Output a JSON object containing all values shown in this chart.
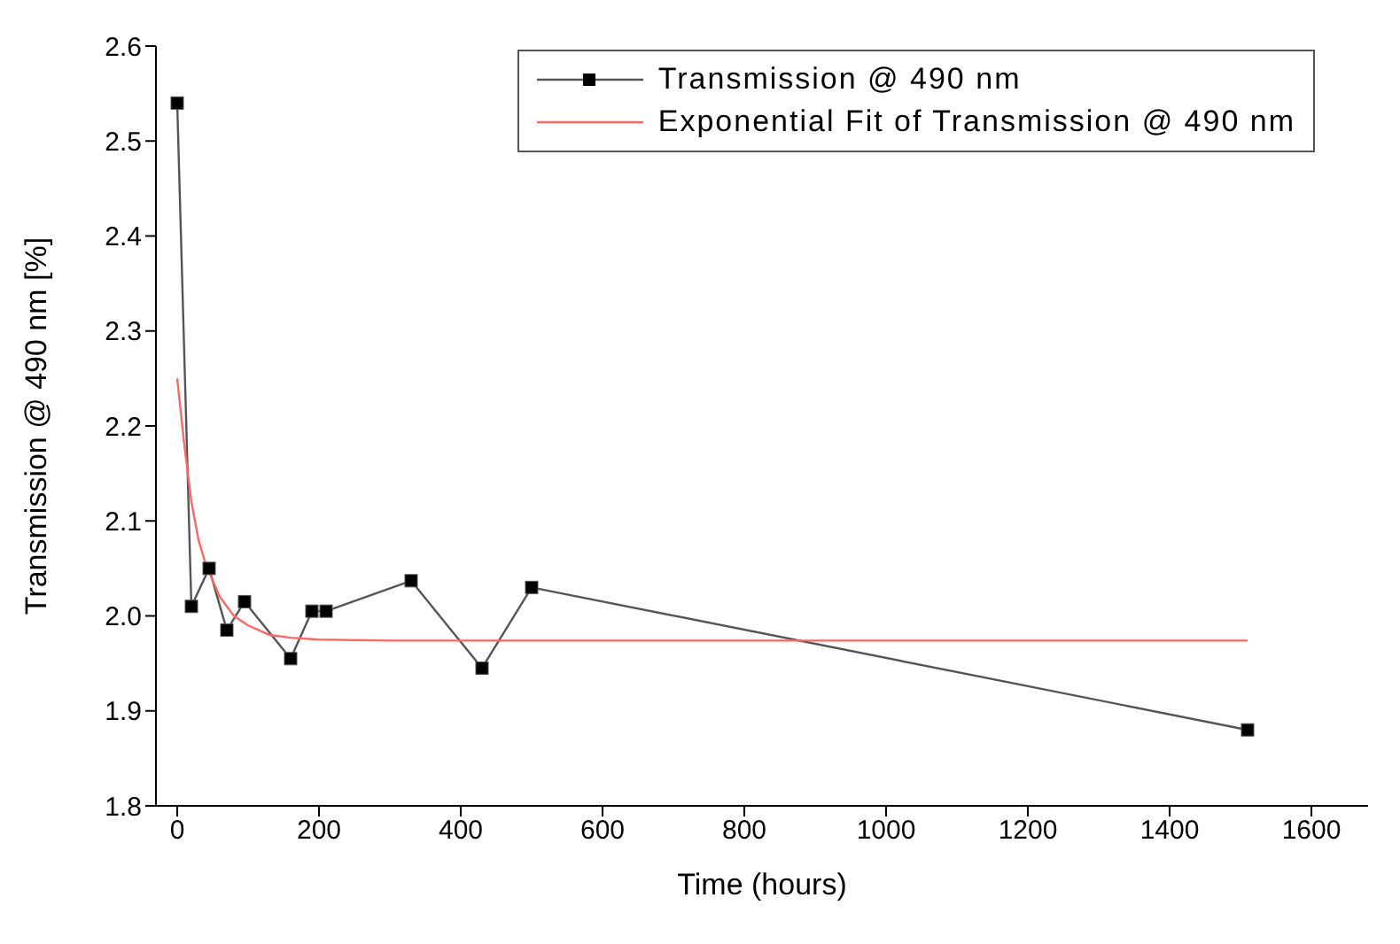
{
  "chart_data": {
    "type": "line",
    "xlabel": "Time (hours)",
    "ylabel": "Transmission @ 490 nm [%]",
    "xlim": [
      -30,
      1680
    ],
    "xticks": [
      0,
      200,
      400,
      600,
      800,
      1000,
      1200,
      1400,
      1600
    ],
    "ylim": [
      1.8,
      2.6
    ],
    "yticks": [
      {
        "value": 1.8,
        "label": "1.8"
      },
      {
        "value": 1.9,
        "label": "1.9"
      },
      {
        "value": 2.0,
        "label": "2.0"
      },
      {
        "value": 2.1,
        "label": "2.1"
      },
      {
        "value": 2.2,
        "label": "2.2"
      },
      {
        "value": 2.3,
        "label": "2.3"
      },
      {
        "value": 2.4,
        "label": "2.4"
      },
      {
        "value": 2.5,
        "label": "2.5"
      },
      {
        "value": 2.6,
        "label": "2.6"
      }
    ],
    "grid": false,
    "legend": "top right",
    "series": [
      {
        "name": "Transmission @ 490 nm",
        "color": "#555555",
        "marker": "square",
        "x": [
          0,
          20,
          45,
          70,
          95,
          160,
          190,
          210,
          330,
          430,
          500,
          1510
        ],
        "values": [
          2.54,
          2.01,
          2.05,
          1.985,
          2.015,
          1.955,
          2.005,
          2.005,
          2.037,
          1.945,
          2.03,
          1.88
        ]
      },
      {
        "name": "Exponential Fit of Transmission @ 490 nm",
        "color": "#ff6666",
        "marker": "none",
        "x": [
          0,
          10,
          20,
          30,
          40,
          60,
          80,
          100,
          130,
          160,
          200,
          300,
          1510
        ],
        "values": [
          2.25,
          2.18,
          2.12,
          2.08,
          2.055,
          2.02,
          2.0,
          1.99,
          1.98,
          1.977,
          1.975,
          1.974,
          1.974
        ]
      }
    ]
  }
}
